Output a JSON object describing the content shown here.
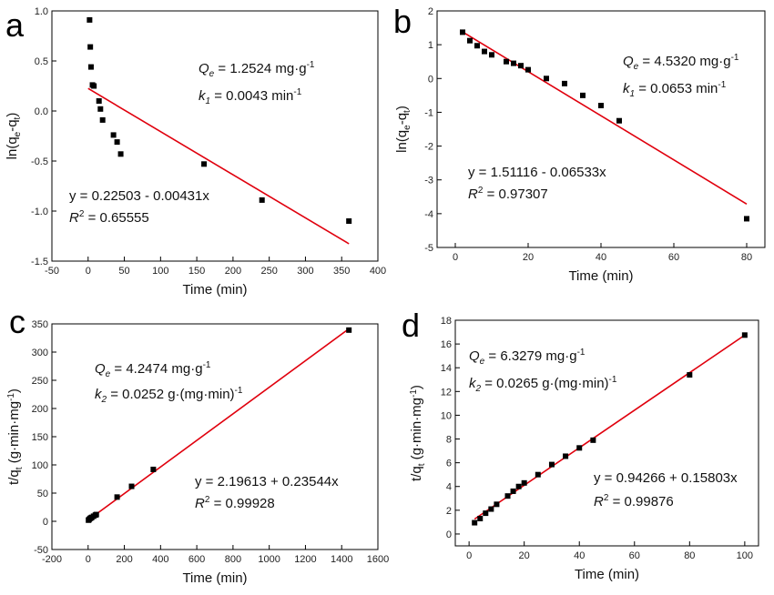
{
  "chart_data": [
    {
      "panel": "a",
      "type": "scatter",
      "xlabel_main": "Time (min)",
      "ylabel": {
        "base": "ln(q",
        "sub1": "e",
        "mid": "-q",
        "sub2": "t",
        "end": ")"
      },
      "xlim": [
        -50,
        400
      ],
      "ylim": [
        -1.5,
        1.0
      ],
      "xticks": [
        "-50",
        "0",
        "50",
        "100",
        "150",
        "200",
        "250",
        "300",
        "350",
        "400"
      ],
      "yticks": [
        "-1.5",
        "-1.0",
        "-0.5",
        "0.0",
        "0.5",
        "1.0"
      ],
      "points": [
        [
          2,
          0.91
        ],
        [
          3,
          0.64
        ],
        [
          4,
          0.44
        ],
        [
          6,
          0.26
        ],
        [
          8,
          0.25
        ],
        [
          15,
          0.1
        ],
        [
          17,
          0.02
        ],
        [
          20,
          -0.09
        ],
        [
          35,
          -0.24
        ],
        [
          40,
          -0.31
        ],
        [
          45,
          -0.43
        ],
        [
          160,
          -0.53
        ],
        [
          240,
          -0.89
        ],
        [
          360,
          -1.1
        ]
      ],
      "fit": {
        "intercept": 0.22503,
        "slope": -0.00431,
        "x_range": [
          0,
          360
        ]
      },
      "annotations": {
        "qe": {
          "sym": "Q",
          "sub": "e",
          "text": " = 1.2524 mg·g",
          "sup": "-1"
        },
        "k": {
          "sym": "k",
          "sub": "1",
          "text": " = 0.0043 min",
          "sup": "-1"
        },
        "eq": "y = 0.22503 - 0.00431x",
        "r2": {
          "sym": "R",
          "sup": "2",
          "text": " = 0.65555"
        }
      }
    },
    {
      "panel": "b",
      "type": "scatter",
      "xlabel_main": "Time (min)",
      "ylabel": {
        "base": "ln(q",
        "sub1": "e",
        "mid": "-q",
        "sub2": "t",
        "end": ")"
      },
      "xlim": [
        -5,
        85
      ],
      "ylim": [
        -5,
        2
      ],
      "xticks": [
        "0",
        "20",
        "40",
        "60",
        "80"
      ],
      "yticks": [
        "-5",
        "-4",
        "-3",
        "-2",
        "-1",
        "0",
        "1",
        "2"
      ],
      "points": [
        [
          2,
          1.37
        ],
        [
          4,
          1.12
        ],
        [
          6,
          0.97
        ],
        [
          8,
          0.8
        ],
        [
          10,
          0.7
        ],
        [
          14,
          0.5
        ],
        [
          16,
          0.45
        ],
        [
          18,
          0.38
        ],
        [
          20,
          0.26
        ],
        [
          25,
          0.0
        ],
        [
          30,
          -0.15
        ],
        [
          35,
          -0.5
        ],
        [
          40,
          -0.8
        ],
        [
          45,
          -1.25
        ],
        [
          80,
          -4.15
        ]
      ],
      "fit": {
        "intercept": 1.51116,
        "slope": -0.06533,
        "x_range": [
          2,
          80
        ]
      },
      "annotations": {
        "qe": {
          "sym": "Q",
          "sub": "e",
          "text": " = 4.5320 mg·g",
          "sup": "-1"
        },
        "k": {
          "sym": "k",
          "sub": "1",
          "text": " = 0.0653 min",
          "sup": "-1"
        },
        "eq": "y = 1.51116 - 0.06533x",
        "r2": {
          "sym": "R",
          "sup": "2",
          "text": " = 0.97307"
        }
      }
    },
    {
      "panel": "c",
      "type": "scatter",
      "xlabel_main": "Time (min)",
      "ylabel": {
        "base": "t/q",
        "sub1": "t",
        "mid": " (g·min·mg",
        "sup": "-1",
        "end": ")"
      },
      "xlim": [
        -200,
        1600
      ],
      "ylim": [
        -50,
        350
      ],
      "xticks": [
        "-200",
        "0",
        "200",
        "400",
        "600",
        "800",
        "1000",
        "1200",
        "1400",
        "1600"
      ],
      "yticks": [
        "-50",
        "0",
        "50",
        "100",
        "150",
        "200",
        "250",
        "300",
        "350"
      ],
      "points": [
        [
          2,
          2
        ],
        [
          5,
          3
        ],
        [
          10,
          5
        ],
        [
          15,
          6
        ],
        [
          20,
          7
        ],
        [
          30,
          9
        ],
        [
          40,
          11
        ],
        [
          45,
          12
        ],
        [
          160,
          43
        ],
        [
          240,
          62
        ],
        [
          360,
          92
        ],
        [
          1440,
          339
        ]
      ],
      "fit": {
        "intercept": 2.19613,
        "slope": 0.23544,
        "x_range": [
          0,
          1440
        ]
      },
      "annotations": {
        "qe": {
          "sym": "Q",
          "sub": "e",
          "text": " = 4.2474 mg·g",
          "sup": "-1"
        },
        "k": {
          "sym": "k",
          "sub": "2",
          "text": " = 0.0252 g·(mg·min)",
          "sup": "-1"
        },
        "eq": "y = 2.19613 + 0.23544x",
        "r2": {
          "sym": "R",
          "sup": "2",
          "text": " = 0.99928"
        }
      }
    },
    {
      "panel": "d",
      "type": "scatter",
      "xlabel_main": "Time (min)",
      "ylabel": {
        "base": "t/q",
        "sub1": "t",
        "mid": " (g·min·mg",
        "sup": "-1",
        "end": ")"
      },
      "xlim": [
        -5,
        105
      ],
      "ylim": [
        -1,
        18
      ],
      "xticks": [
        "0",
        "20",
        "40",
        "60",
        "80",
        "100"
      ],
      "yticks": [
        "0",
        "2",
        "4",
        "6",
        "8",
        "10",
        "12",
        "14",
        "16",
        "18"
      ],
      "points": [
        [
          2,
          0.95
        ],
        [
          4,
          1.3
        ],
        [
          6,
          1.75
        ],
        [
          8,
          2.1
        ],
        [
          10,
          2.5
        ],
        [
          14,
          3.2
        ],
        [
          16,
          3.6
        ],
        [
          18,
          4.0
        ],
        [
          20,
          4.3
        ],
        [
          25,
          5.0
        ],
        [
          30,
          5.85
        ],
        [
          35,
          6.55
        ],
        [
          40,
          7.25
        ],
        [
          45,
          7.9
        ],
        [
          80,
          13.4
        ],
        [
          100,
          16.75
        ]
      ],
      "fit": {
        "intercept": 0.94266,
        "slope": 0.15803,
        "x_range": [
          2,
          100
        ]
      },
      "annotations": {
        "qe": {
          "sym": "Q",
          "sub": "e",
          "text": " = 6.3279 mg·g",
          "sup": "-1"
        },
        "k": {
          "sym": "k",
          "sub": "2",
          "text": " = 0.0265 g·(mg·min)",
          "sup": "-1"
        },
        "eq": "y = 0.94266 + 0.15803x",
        "r2": {
          "sym": "R",
          "sup": "2",
          "text": " = 0.99876"
        }
      }
    }
  ],
  "colors": {
    "fit_line": "#e0000d",
    "points": "#000000",
    "axes": "#000000"
  }
}
